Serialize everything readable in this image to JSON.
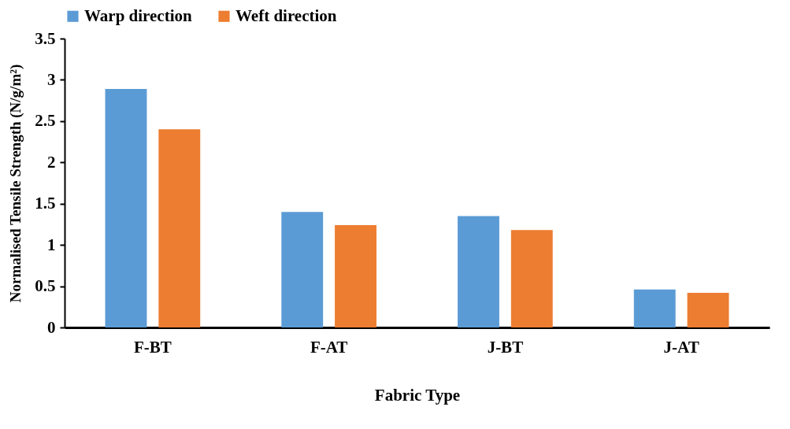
{
  "chart_data": {
    "type": "bar",
    "xlabel": "Fabric Type",
    "ylabel": "Normalised Tensile Strength (N/g/m²)",
    "categories": [
      "F-BT",
      "F-AT",
      "J-BT",
      "J-AT"
    ],
    "series": [
      {
        "name": "Warp direction",
        "color": "#5b9bd5",
        "values": [
          2.89,
          1.4,
          1.35,
          0.46
        ]
      },
      {
        "name": "Weft direction",
        "color": "#ed7d31",
        "values": [
          2.4,
          1.24,
          1.18,
          0.42
        ]
      }
    ],
    "ylim": [
      0,
      3.5
    ],
    "yticks": [
      0,
      0.5,
      1,
      1.5,
      2,
      2.5,
      3,
      3.5
    ],
    "grid": false,
    "legend": "top"
  }
}
